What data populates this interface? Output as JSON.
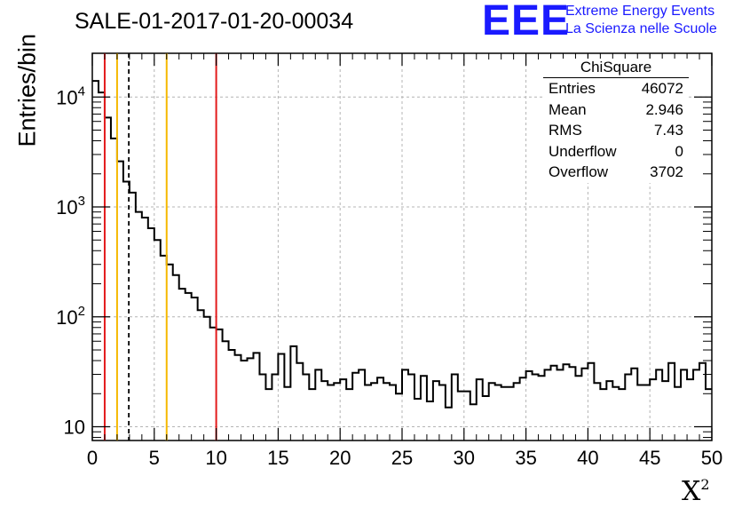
{
  "title": "SALE-01-2017-01-20-00034",
  "logo": {
    "text": "EEE",
    "line1": "Extreme Energy Events",
    "line2": "La Scienza nelle Scuole"
  },
  "stats": {
    "title": "ChiSquare",
    "rows": [
      {
        "label": "Entries",
        "value": "46072"
      },
      {
        "label": "Mean",
        "value": "2.946"
      },
      {
        "label": "RMS",
        "value": "7.43"
      },
      {
        "label": "Underflow",
        "value": "0"
      },
      {
        "label": "Overflow",
        "value": "3702"
      }
    ]
  },
  "colors": {
    "red": "#e31a1c",
    "orange": "#f5b800",
    "histogram": "#000000",
    "grid": "#b4b4b4"
  },
  "chart_data": {
    "type": "bar",
    "subtype": "step-histogram",
    "xlabel": "X²",
    "ylabel": "Entries/bin",
    "xlim": [
      0,
      50
    ],
    "ylim": [
      7.5,
      25000
    ],
    "yscale": "log",
    "grid": true,
    "bin_width": 0.5,
    "x_ticks": [
      "0",
      "5",
      "10",
      "15",
      "20",
      "25",
      "30",
      "35",
      "40",
      "45",
      "50"
    ],
    "y_ticks": [
      {
        "value": 10,
        "label": "10"
      },
      {
        "value": 100,
        "label": "10^2"
      },
      {
        "value": 1000,
        "label": "10^3"
      },
      {
        "value": 10000,
        "label": "10^4"
      }
    ],
    "values": [
      14000,
      11000,
      6500,
      4200,
      2600,
      1700,
      1350,
      900,
      800,
      640,
      500,
      360,
      300,
      240,
      180,
      165,
      150,
      115,
      100,
      80,
      77,
      60,
      50,
      45,
      40,
      42,
      47,
      30,
      22,
      30,
      46,
      23,
      54,
      38,
      30,
      22,
      33,
      26,
      24,
      25,
      27,
      22,
      31,
      33,
      24,
      25,
      28,
      25,
      24,
      20,
      33,
      30,
      18,
      29,
      17,
      26,
      24,
      15,
      30,
      21,
      21,
      16,
      27,
      19,
      25,
      24,
      23,
      23,
      25,
      28,
      32,
      30,
      29,
      33,
      36,
      33,
      37,
      35,
      29,
      34,
      38,
      25,
      22,
      26,
      23,
      22,
      30,
      34,
      24,
      24,
      27,
      33,
      26,
      38,
      23,
      33,
      27,
      33,
      38,
      22
    ],
    "vertical_lines": [
      {
        "x": 1,
        "color": "red",
        "style": "solid"
      },
      {
        "x": 2,
        "color": "orange",
        "style": "solid"
      },
      {
        "x": 2.946,
        "color": "black",
        "style": "dashed"
      },
      {
        "x": 6,
        "color": "orange",
        "style": "solid"
      },
      {
        "x": 10,
        "color": "red",
        "style": "solid"
      }
    ]
  }
}
